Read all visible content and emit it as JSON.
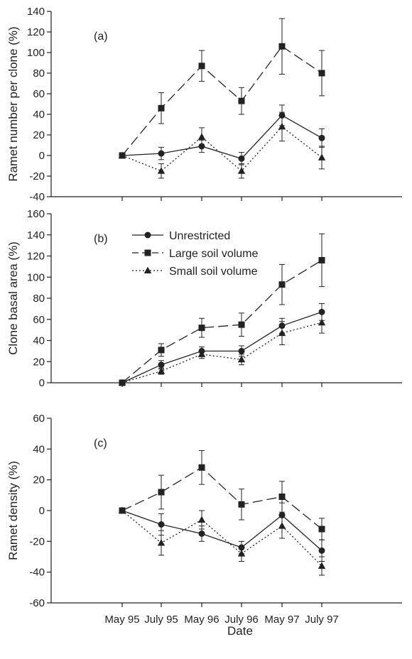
{
  "x_title": "Date",
  "chart_data": [
    {
      "type": "line",
      "panel_label": "(a)",
      "ylabel": "Ramet number per clone (%)",
      "xlabel": "",
      "categories": [
        "May 95",
        "July 95",
        "May 96",
        "July 96",
        "May 97",
        "July 97"
      ],
      "ylim": [
        -40,
        140
      ],
      "yticks": [
        -40,
        -20,
        0,
        20,
        40,
        60,
        80,
        100,
        120,
        140
      ],
      "series": [
        {
          "name": "Unrestricted",
          "style": "solid",
          "marker": "circle",
          "values": [
            0,
            2,
            9,
            -3,
            39,
            17
          ],
          "errors": [
            0,
            6,
            6,
            6,
            10,
            9
          ]
        },
        {
          "name": "Large soil volume",
          "style": "dashed",
          "marker": "square",
          "values": [
            0,
            46,
            87,
            53,
            106,
            80
          ],
          "errors": [
            0,
            15,
            15,
            13,
            27,
            22
          ]
        },
        {
          "name": "Small soil volume",
          "style": "dotted",
          "marker": "triangle",
          "values": [
            0,
            -15,
            18,
            -15,
            28,
            -2
          ],
          "errors": [
            0,
            7,
            9,
            7,
            14,
            11
          ]
        }
      ]
    },
    {
      "type": "line",
      "panel_label": "(b)",
      "ylabel": "Clone basal area (%)",
      "xlabel": "",
      "categories": [
        "May 95",
        "July 95",
        "May 96",
        "July 96",
        "May 97",
        "July 97"
      ],
      "ylim": [
        0,
        160
      ],
      "yticks": [
        0,
        20,
        40,
        60,
        80,
        100,
        120,
        140,
        160
      ],
      "series": [
        {
          "name": "Unrestricted",
          "style": "solid",
          "marker": "circle",
          "values": [
            0,
            17,
            30,
            30,
            54,
            67
          ],
          "errors": [
            0,
            4,
            4,
            5,
            7,
            8
          ]
        },
        {
          "name": "Large soil volume",
          "style": "dashed",
          "marker": "square",
          "values": [
            0,
            31,
            52,
            55,
            93,
            116
          ],
          "errors": [
            0,
            6,
            9,
            11,
            19,
            25
          ]
        },
        {
          "name": "Small soil volume",
          "style": "dotted",
          "marker": "triangle",
          "values": [
            0,
            11,
            27,
            22,
            47,
            57
          ],
          "errors": [
            0,
            3,
            4,
            5,
            11,
            10
          ]
        }
      ],
      "legend": {
        "placement": "top-left",
        "entries": [
          "Unrestricted",
          "Large soil volume",
          "Small soil volume"
        ]
      }
    },
    {
      "type": "line",
      "panel_label": "(c)",
      "ylabel": "Ramet density (%)",
      "xlabel": "Date",
      "categories": [
        "May 95",
        "July 95",
        "May 96",
        "July 96",
        "May 97",
        "July 97"
      ],
      "ylim": [
        -60,
        60
      ],
      "yticks": [
        -60,
        -40,
        -20,
        0,
        20,
        40,
        60
      ],
      "series": [
        {
          "name": "Unrestricted",
          "style": "solid",
          "marker": "circle",
          "values": [
            0,
            -9,
            -15,
            -24,
            -3,
            -26
          ],
          "errors": [
            0,
            7,
            5,
            4,
            8,
            7
          ]
        },
        {
          "name": "Large soil volume",
          "style": "dashed",
          "marker": "square",
          "values": [
            0,
            12,
            28,
            4,
            9,
            -12
          ],
          "errors": [
            0,
            11,
            11,
            10,
            10,
            7
          ]
        },
        {
          "name": "Small soil volume",
          "style": "dotted",
          "marker": "triangle",
          "values": [
            0,
            -21,
            -6,
            -28,
            -10,
            -36
          ],
          "errors": [
            0,
            8,
            6,
            5,
            8,
            6
          ]
        }
      ]
    }
  ]
}
